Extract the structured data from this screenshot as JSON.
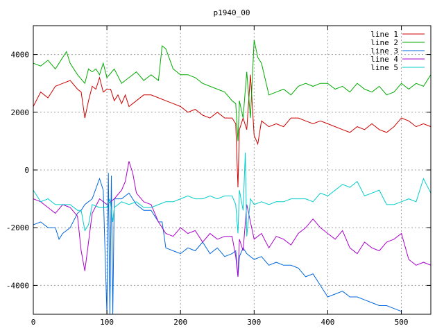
{
  "chart_data": {
    "type": "line",
    "title": "p1940_00",
    "xlabel": "",
    "ylabel": "",
    "xlim": [
      0,
      540
    ],
    "ylim": [
      -5000,
      5000
    ],
    "x_ticks": [
      0,
      100,
      200,
      300,
      400,
      500
    ],
    "y_ticks": [
      -4000,
      -2000,
      0,
      2000,
      4000
    ],
    "grid": true,
    "legend_position": "top-right",
    "series": [
      {
        "name": "line 1",
        "color": "#cc0000",
        "x": [
          0,
          10,
          20,
          30,
          40,
          50,
          60,
          65,
          70,
          75,
          80,
          85,
          90,
          95,
          100,
          105,
          110,
          115,
          120,
          125,
          130,
          140,
          150,
          160,
          170,
          180,
          190,
          200,
          210,
          220,
          230,
          240,
          250,
          260,
          270,
          275,
          278,
          280,
          285,
          290,
          295,
          300,
          305,
          310,
          320,
          330,
          340,
          350,
          360,
          370,
          380,
          390,
          400,
          410,
          420,
          430,
          440,
          450,
          460,
          470,
          480,
          490,
          500,
          510,
          520,
          530,
          540
        ],
        "y": [
          2200,
          2700,
          2500,
          2900,
          3000,
          3100,
          2800,
          2700,
          1800,
          2400,
          2900,
          2800,
          3200,
          2700,
          2800,
          2800,
          2400,
          2600,
          2300,
          2600,
          2200,
          2400,
          2600,
          2600,
          2500,
          2400,
          2300,
          2200,
          2000,
          2100,
          1900,
          1800,
          2000,
          1800,
          1800,
          1600,
          -600,
          1400,
          1800,
          1400,
          3300,
          1200,
          900,
          1700,
          1500,
          1600,
          1500,
          1800,
          1800,
          1700,
          1600,
          1700,
          1600,
          1500,
          1400,
          1300,
          1500,
          1400,
          1600,
          1400,
          1300,
          1500,
          1800,
          1700,
          1500,
          1600,
          1500
        ]
      },
      {
        "name": "line 2",
        "color": "#00aa00",
        "x": [
          0,
          10,
          20,
          30,
          40,
          45,
          50,
          60,
          70,
          75,
          80,
          85,
          90,
          95,
          100,
          110,
          120,
          125,
          130,
          140,
          150,
          160,
          170,
          175,
          180,
          190,
          200,
          210,
          220,
          230,
          240,
          250,
          260,
          270,
          275,
          278,
          280,
          285,
          290,
          295,
          300,
          305,
          310,
          320,
          330,
          340,
          350,
          360,
          370,
          380,
          390,
          400,
          410,
          420,
          430,
          440,
          450,
          460,
          470,
          480,
          490,
          500,
          510,
          520,
          530,
          540
        ],
        "y": [
          3700,
          3600,
          3800,
          3500,
          3900,
          4100,
          3700,
          3300,
          3000,
          3500,
          3400,
          3500,
          3300,
          3700,
          3200,
          3500,
          3000,
          3100,
          3200,
          3400,
          3100,
          3300,
          3100,
          4300,
          4200,
          3500,
          3300,
          3300,
          3200,
          3000,
          2900,
          2800,
          2700,
          2400,
          2300,
          1000,
          2400,
          1800,
          3400,
          1800,
          4500,
          3900,
          3700,
          2600,
          2700,
          2800,
          2600,
          2900,
          3000,
          2900,
          3000,
          3000,
          2800,
          2900,
          2700,
          3000,
          2800,
          2700,
          2900,
          2600,
          2700,
          3000,
          2800,
          3000,
          2900,
          3300
        ]
      },
      {
        "name": "line 3",
        "color": "#0066dd",
        "x": [
          0,
          10,
          20,
          30,
          35,
          40,
          50,
          60,
          65,
          70,
          80,
          90,
          95,
          100,
          102,
          104,
          106,
          108,
          110,
          120,
          130,
          140,
          150,
          160,
          170,
          175,
          180,
          190,
          200,
          210,
          220,
          230,
          240,
          250,
          260,
          270,
          275,
          278,
          280,
          285,
          290,
          300,
          310,
          320,
          330,
          340,
          350,
          360,
          370,
          380,
          390,
          400,
          410,
          420,
          430,
          440,
          450,
          460,
          470,
          480,
          490,
          500
        ],
        "y": [
          -1900,
          -1800,
          -2000,
          -2000,
          -2400,
          -2200,
          -2000,
          -1500,
          -1400,
          -1200,
          -1000,
          -300,
          -700,
          -5000,
          -100,
          -5000,
          -200,
          -5000,
          -1000,
          -1000,
          -800,
          -1200,
          -1400,
          -1400,
          -1800,
          -1800,
          -2700,
          -2800,
          -2900,
          -2700,
          -2800,
          -2500,
          -2900,
          -2700,
          -3000,
          -2900,
          -2800,
          -3700,
          -3000,
          -2700,
          -2900,
          -3100,
          -3000,
          -3300,
          -3200,
          -3300,
          -3300,
          -3400,
          -3700,
          -3600,
          -4000,
          -4400,
          -4300,
          -4200,
          -4400,
          -4400,
          -4500,
          -4600,
          -4700,
          -4700,
          -4800,
          -4900
        ]
      },
      {
        "name": "line 4",
        "color": "#aa00cc",
        "x": [
          0,
          10,
          20,
          30,
          40,
          50,
          60,
          65,
          70,
          75,
          80,
          90,
          100,
          110,
          120,
          125,
          130,
          135,
          140,
          150,
          160,
          170,
          180,
          190,
          200,
          210,
          220,
          230,
          240,
          250,
          260,
          270,
          275,
          278,
          280,
          285,
          290,
          300,
          310,
          320,
          330,
          340,
          350,
          360,
          370,
          380,
          390,
          400,
          410,
          420,
          430,
          440,
          450,
          460,
          470,
          480,
          490,
          500,
          510,
          520,
          530,
          540
        ],
        "y": [
          -1000,
          -1100,
          -1300,
          -1500,
          -1200,
          -1300,
          -1600,
          -2800,
          -3500,
          -2500,
          -1500,
          -1000,
          -1200,
          -1000,
          -700,
          -400,
          300,
          -100,
          -800,
          -1100,
          -1200,
          -1800,
          -2200,
          -2300,
          -2000,
          -2200,
          -2100,
          -2500,
          -2200,
          -2400,
          -2300,
          -2300,
          -3000,
          -3700,
          -2400,
          -2800,
          -1200,
          -2400,
          -2200,
          -2700,
          -2300,
          -2400,
          -2600,
          -2200,
          -2000,
          -1700,
          -2000,
          -2200,
          -2400,
          -2100,
          -2700,
          -2900,
          -2500,
          -2700,
          -2800,
          -2500,
          -2400,
          -2200,
          -3100,
          -3300,
          -3200,
          -3300
        ]
      },
      {
        "name": "line 5",
        "color": "#00cccc",
        "x": [
          0,
          10,
          20,
          30,
          40,
          50,
          60,
          65,
          70,
          75,
          80,
          90,
          100,
          104,
          108,
          110,
          120,
          130,
          140,
          150,
          160,
          170,
          180,
          190,
          200,
          210,
          220,
          230,
          240,
          250,
          260,
          270,
          275,
          278,
          280,
          285,
          288,
          290,
          295,
          300,
          310,
          320,
          330,
          340,
          350,
          360,
          370,
          380,
          390,
          400,
          410,
          420,
          430,
          440,
          450,
          460,
          470,
          480,
          490,
          500,
          510,
          520,
          530,
          540
        ],
        "y": [
          -700,
          -1100,
          -1000,
          -1200,
          -1200,
          -1200,
          -1400,
          -1400,
          -2100,
          -1900,
          -1200,
          -1300,
          -1300,
          -1000,
          -1800,
          -1300,
          -1100,
          -1200,
          -1100,
          -1300,
          -1300,
          -1200,
          -1100,
          -1100,
          -1000,
          -900,
          -1000,
          -1000,
          -900,
          -1000,
          -900,
          -900,
          -1200,
          -2200,
          -700,
          -1400,
          600,
          -2300,
          -1000,
          -1200,
          -1100,
          -1200,
          -1100,
          -1100,
          -1000,
          -1000,
          -1000,
          -1100,
          -800,
          -900,
          -700,
          -500,
          -600,
          -400,
          -900,
          -800,
          -700,
          -1200,
          -1200,
          -1100,
          -1000,
          -1100,
          -300,
          -800
        ]
      }
    ]
  }
}
